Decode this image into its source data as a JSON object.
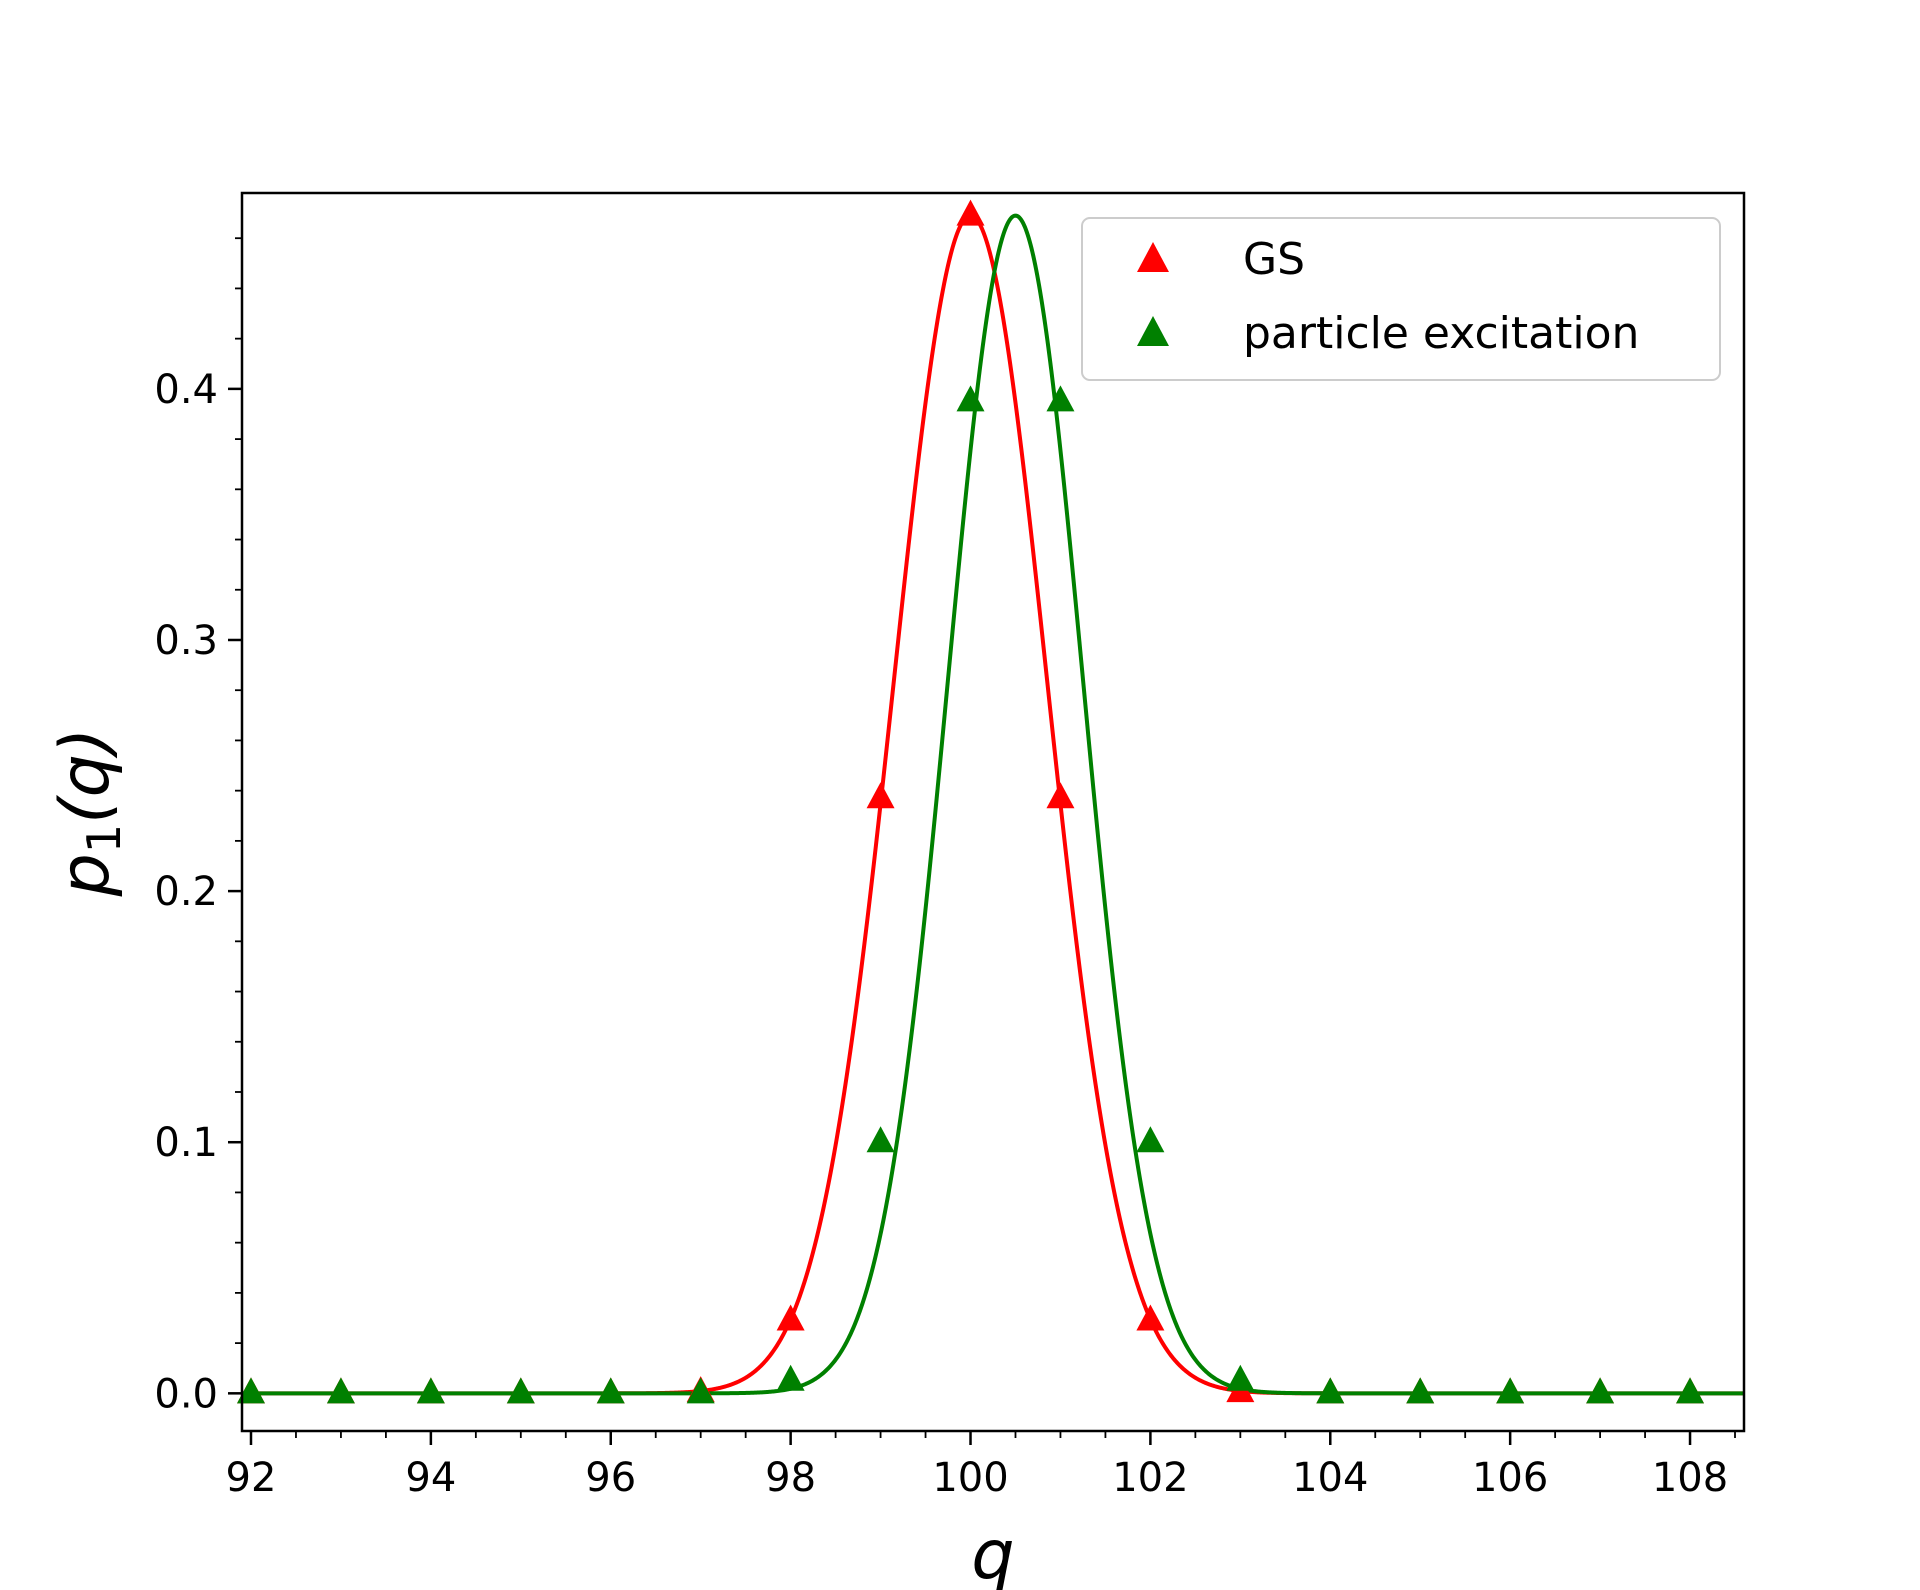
{
  "chart_data": {
    "type": "line",
    "title": "",
    "xlabel": "q",
    "ylabel_main": "p",
    "ylabel_sub": "1",
    "ylabel_arg": "(q)",
    "xlim": [
      91.9,
      108.6
    ],
    "ylim": [
      -0.015,
      0.478
    ],
    "xticks": [
      92,
      94,
      96,
      98,
      100,
      102,
      104,
      106,
      108
    ],
    "xtick_labels": [
      "92",
      "94",
      "96",
      "98",
      "100",
      "102",
      "104",
      "106",
      "108"
    ],
    "yticks": [
      0.0,
      0.1,
      0.2,
      0.3,
      0.4
    ],
    "ytick_labels": [
      "0.0",
      "0.1",
      "0.2",
      "0.3",
      "0.4"
    ],
    "legend_position": "top-right",
    "series": [
      {
        "name": "GS",
        "color": "#ff0000",
        "curve": {
          "center": 100.0,
          "sigma": 0.85,
          "peak": 0.469
        },
        "markers": {
          "x": [
            92,
            93,
            94,
            95,
            96,
            97,
            98,
            99,
            100,
            101,
            102,
            103,
            104,
            105,
            106,
            107,
            108
          ],
          "y": [
            0.0,
            0.0,
            0.0,
            0.0,
            0.0,
            0.0005,
            0.029,
            0.237,
            0.469,
            0.237,
            0.029,
            0.0005,
            0.0,
            0.0,
            0.0,
            0.0,
            0.0
          ]
        }
      },
      {
        "name": "particle excitation",
        "color": "#008000",
        "curve": {
          "center": 100.5,
          "sigma": 0.75,
          "peak": 0.469
        },
        "markers": {
          "x": [
            92,
            93,
            94,
            95,
            96,
            97,
            98,
            99,
            100,
            101,
            102,
            103,
            104,
            105,
            106,
            107,
            108
          ],
          "y": [
            0.0,
            0.0,
            0.0,
            0.0,
            0.0,
            0.0,
            0.005,
            0.1,
            0.395,
            0.395,
            0.1,
            0.005,
            0.0,
            0.0,
            0.0,
            0.0,
            0.0
          ]
        }
      }
    ]
  }
}
